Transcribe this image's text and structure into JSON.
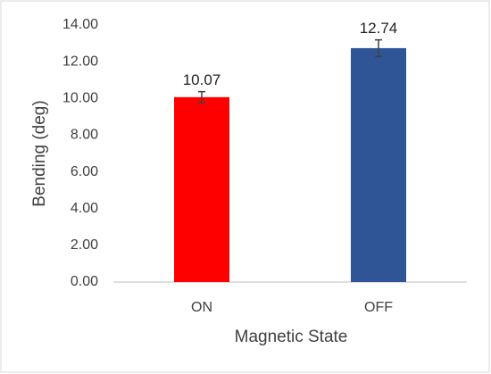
{
  "chart_data": {
    "type": "bar",
    "x_label": "Magnetic State",
    "y_label": "Bending  (deg)",
    "categories": [
      "ON",
      "OFF"
    ],
    "values": [
      10.07,
      12.74
    ],
    "errors": [
      0.3,
      0.45
    ],
    "colors": [
      "#ff0000",
      "#2f5597"
    ],
    "ylim": [
      0,
      14
    ],
    "yticks": [
      {
        "value": 0,
        "label": "0.00"
      },
      {
        "value": 2,
        "label": "2.00"
      },
      {
        "value": 4,
        "label": "4.00"
      },
      {
        "value": 6,
        "label": "6.00"
      },
      {
        "value": 8,
        "label": "8.00"
      },
      {
        "value": 10,
        "label": "10.00"
      },
      {
        "value": 12,
        "label": "12.00"
      },
      {
        "value": 14,
        "label": "14.00"
      }
    ],
    "grid": false
  }
}
